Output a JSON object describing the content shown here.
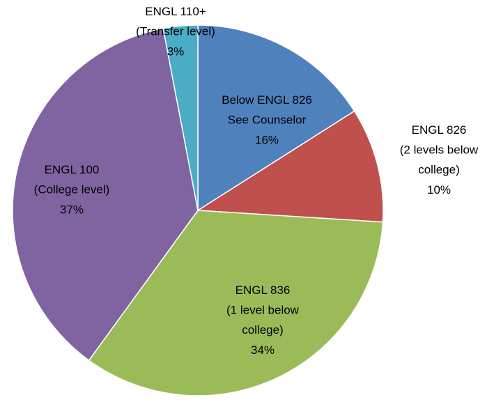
{
  "chart_data": {
    "type": "pie",
    "categories": [
      "Below ENGL 826\nSee Counselor",
      "ENGL 826\n(2 levels below\ncollege)",
      "ENGL 836\n(1 level below\ncollege)",
      "ENGL 100\n(College level)",
      "ENGL 110+\n(Transfer level)"
    ],
    "values": [
      16,
      10,
      34,
      37,
      3
    ],
    "value_labels": [
      "16%",
      "10%",
      "34%",
      "37%",
      "3%"
    ],
    "colors": [
      "#4f81bd",
      "#c0504d",
      "#9bbb59",
      "#8064a2",
      "#4bacc6"
    ]
  }
}
